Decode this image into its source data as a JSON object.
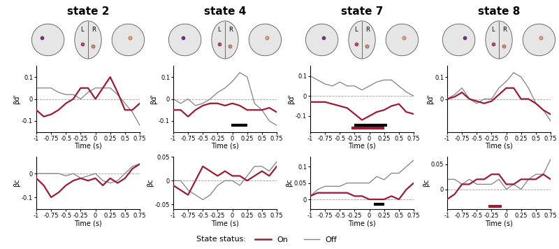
{
  "legend_title": "State status:",
  "legend": "lower center",
  "brain_labels": [
    "L",
    "R"
  ],
  "chart_data": [
    {
      "type": "line",
      "title": "state 2",
      "xlabel": "Time (s)",
      "ylabel": "βd'",
      "x": [
        -1,
        -0.875,
        -0.75,
        -0.625,
        -0.5,
        -0.375,
        -0.25,
        -0.125,
        0,
        0.125,
        0.25,
        0.375,
        0.5,
        0.625,
        0.75
      ],
      "xlim": [
        -1,
        0.75
      ],
      "xticks": [
        -1,
        -0.75,
        -0.5,
        -0.25,
        0,
        0.25,
        0.5,
        0.75
      ],
      "ylim": [
        -0.15,
        0.15
      ],
      "yticks": [
        -0.1,
        0,
        0.1
      ],
      "hline": 0,
      "series": [
        {
          "name": "On",
          "color": "#9e1b32",
          "values": [
            -0.05,
            -0.08,
            -0.07,
            -0.05,
            -0.02,
            0.0,
            0.05,
            0.05,
            0.0,
            0.05,
            0.1,
            0.03,
            -0.05,
            -0.05,
            -0.02
          ],
          "significant": []
        },
        {
          "name": "Off",
          "color": "#808080",
          "values": [
            0.05,
            0.05,
            0.05,
            0.03,
            0.02,
            0.02,
            0.0,
            0.03,
            0.05,
            0.05,
            0.05,
            0.02,
            -0.02,
            -0.06,
            -0.12
          ],
          "significant": []
        }
      ]
    },
    {
      "type": "line",
      "title": "state 4",
      "xlabel": "Time (s)",
      "ylabel": "βd'",
      "x": [
        -1,
        -0.875,
        -0.75,
        -0.625,
        -0.5,
        -0.375,
        -0.25,
        -0.125,
        0,
        0.125,
        0.25,
        0.375,
        0.5,
        0.625,
        0.75
      ],
      "xlim": [
        -1,
        0.75
      ],
      "xticks": [
        -1,
        -0.75,
        -0.5,
        -0.25,
        0,
        0.25,
        0.5,
        0.75
      ],
      "ylim": [
        -0.15,
        0.15
      ],
      "yticks": [
        -0.1,
        0,
        0.1
      ],
      "hline": 0,
      "series": [
        {
          "name": "On",
          "color": "#9e1b32",
          "values": [
            -0.05,
            -0.05,
            -0.08,
            -0.05,
            -0.03,
            -0.02,
            -0.02,
            -0.03,
            -0.02,
            -0.03,
            -0.05,
            -0.05,
            -0.05,
            -0.04,
            -0.06
          ],
          "significant": []
        },
        {
          "name": "Off",
          "color": "#808080",
          "values": [
            0.0,
            -0.02,
            0.0,
            -0.03,
            -0.02,
            0.0,
            0.03,
            0.05,
            0.08,
            0.12,
            0.1,
            -0.02,
            -0.05,
            -0.1,
            -0.12
          ],
          "significant": [
            [
              -0.02,
              0.25
            ]
          ]
        }
      ]
    },
    {
      "type": "line",
      "title": "state 7",
      "xlabel": "Time (s)",
      "ylabel": "βd'",
      "x": [
        -1,
        -0.875,
        -0.75,
        -0.625,
        -0.5,
        -0.375,
        -0.25,
        -0.125,
        0,
        0.125,
        0.25,
        0.375,
        0.5,
        0.625,
        0.75
      ],
      "xlim": [
        -1,
        0.75
      ],
      "xticks": [
        -1,
        -0.75,
        -0.5,
        -0.25,
        0,
        0.25,
        0.5,
        0.75
      ],
      "ylim": [
        -0.18,
        0.15
      ],
      "yticks": [
        -0.1,
        0,
        0.1
      ],
      "hline": 0,
      "series": [
        {
          "name": "On",
          "color": "#9e1b32",
          "values": [
            -0.03,
            -0.03,
            -0.03,
            -0.04,
            -0.05,
            -0.06,
            -0.09,
            -0.12,
            -0.1,
            -0.08,
            -0.07,
            -0.05,
            -0.04,
            -0.08,
            -0.09
          ],
          "significant": [
            [
              -0.3,
              0.25
            ]
          ]
        },
        {
          "name": "Off",
          "color": "#808080",
          "values": [
            0.1,
            0.08,
            0.06,
            0.05,
            0.07,
            0.05,
            0.05,
            0.03,
            0.05,
            0.07,
            0.08,
            0.08,
            0.05,
            0.02,
            0.0
          ],
          "significant": [
            [
              -0.25,
              0.3
            ]
          ]
        }
      ]
    },
    {
      "type": "line",
      "title": "state 8",
      "xlabel": "Time (s)",
      "ylabel": "βd'",
      "x": [
        -1,
        -0.875,
        -0.75,
        -0.625,
        -0.5,
        -0.375,
        -0.25,
        -0.125,
        0,
        0.125,
        0.25,
        0.375,
        0.5,
        0.625,
        0.75
      ],
      "xlim": [
        -1,
        0.75
      ],
      "xticks": [
        -1,
        -0.75,
        -0.5,
        -0.25,
        0,
        0.25,
        0.5,
        0.75
      ],
      "ylim": [
        -0.15,
        0.15
      ],
      "yticks": [
        0,
        0.1
      ],
      "hline": 0,
      "series": [
        {
          "name": "On",
          "color": "#9e1b32",
          "values": [
            0.0,
            0.01,
            0.03,
            0.0,
            -0.01,
            -0.02,
            -0.01,
            0.02,
            0.05,
            0.05,
            0.0,
            0.0,
            -0.02,
            -0.05,
            -0.07
          ],
          "significant": []
        },
        {
          "name": "Off",
          "color": "#808080",
          "values": [
            0.0,
            0.02,
            0.05,
            0.0,
            -0.02,
            0.0,
            0.0,
            0.05,
            0.08,
            0.12,
            0.1,
            0.05,
            -0.02,
            -0.05,
            -0.1
          ],
          "significant": []
        }
      ]
    },
    {
      "type": "line",
      "xlabel": "Time (s)",
      "ylabel": "βc",
      "x": [
        -1,
        -0.875,
        -0.75,
        -0.625,
        -0.5,
        -0.375,
        -0.25,
        -0.125,
        0,
        0.125,
        0.25,
        0.375,
        0.5,
        0.625,
        0.75
      ],
      "xlim": [
        -1,
        0.75
      ],
      "xticks": [
        -1,
        -0.75,
        -0.5,
        -0.25,
        0,
        0.25,
        0.5,
        0.75
      ],
      "ylim": [
        -0.15,
        0.07
      ],
      "yticks": [
        -0.1,
        0
      ],
      "hline": 0,
      "series": [
        {
          "name": "On",
          "color": "#9e1b32",
          "values": [
            -0.02,
            -0.05,
            -0.1,
            -0.08,
            -0.05,
            -0.03,
            -0.02,
            -0.03,
            -0.02,
            -0.05,
            -0.02,
            -0.04,
            -0.02,
            0.02,
            0.04
          ],
          "significant": []
        },
        {
          "name": "Off",
          "color": "#808080",
          "values": [
            0.0,
            0.0,
            0.0,
            0.0,
            -0.01,
            0.0,
            -0.02,
            -0.01,
            0.0,
            -0.03,
            -0.04,
            -0.03,
            0.0,
            0.03,
            0.04
          ],
          "significant": []
        }
      ]
    },
    {
      "type": "line",
      "xlabel": "Time (s)",
      "ylabel": "βc",
      "x": [
        -1,
        -0.875,
        -0.75,
        -0.625,
        -0.5,
        -0.375,
        -0.25,
        -0.125,
        0,
        0.125,
        0.25,
        0.375,
        0.5,
        0.625,
        0.75
      ],
      "xlim": [
        -1,
        0.75
      ],
      "xticks": [
        -1,
        -0.75,
        -0.5,
        -0.25,
        0,
        0.25,
        0.5,
        0.75
      ],
      "ylim": [
        -0.06,
        0.05
      ],
      "yticks": [
        -0.05,
        0,
        0.05
      ],
      "hline": 0,
      "series": [
        {
          "name": "On",
          "color": "#9e1b32",
          "values": [
            -0.01,
            -0.02,
            -0.03,
            0.0,
            0.03,
            0.02,
            0.01,
            0.02,
            0.01,
            0.01,
            0.0,
            0.01,
            0.02,
            0.01,
            0.03
          ],
          "significant": []
        },
        {
          "name": "Off",
          "color": "#808080",
          "values": [
            0.0,
            0.0,
            -0.02,
            -0.03,
            -0.04,
            -0.03,
            -0.01,
            0.0,
            0.0,
            -0.01,
            0.01,
            0.03,
            0.03,
            0.02,
            0.04
          ],
          "significant": []
        }
      ]
    },
    {
      "type": "line",
      "xlabel": "Time (s)",
      "ylabel": "βc",
      "x": [
        -1,
        -0.875,
        -0.75,
        -0.625,
        -0.5,
        -0.375,
        -0.25,
        -0.125,
        0,
        0.125,
        0.25,
        0.375,
        0.5,
        0.625,
        0.75
      ],
      "xlim": [
        -1,
        0.75
      ],
      "xticks": [
        -1,
        -0.75,
        -0.5,
        -0.25,
        0,
        0.25,
        0.5,
        0.75
      ],
      "ylim": [
        -0.03,
        0.13
      ],
      "yticks": [
        0,
        0.05,
        0.1
      ],
      "hline": 0,
      "series": [
        {
          "name": "On",
          "color": "#9e1b32",
          "values": [
            0.01,
            0.02,
            0.02,
            0.02,
            0.02,
            0.02,
            0.01,
            0.01,
            0.0,
            0.0,
            0.0,
            0.01,
            0.0,
            0.03,
            0.05
          ],
          "significant": []
        },
        {
          "name": "Off",
          "color": "#808080",
          "values": [
            0.01,
            0.03,
            0.04,
            0.04,
            0.04,
            0.05,
            0.05,
            0.05,
            0.05,
            0.07,
            0.06,
            0.08,
            0.08,
            0.1,
            0.12
          ],
          "significant": [
            [
              0.08,
              0.25
            ]
          ]
        }
      ]
    },
    {
      "type": "line",
      "xlabel": "Time (s)",
      "ylabel": "βc",
      "x": [
        -1,
        -0.875,
        -0.75,
        -0.625,
        -0.5,
        -0.375,
        -0.25,
        -0.125,
        0,
        0.125,
        0.25,
        0.375,
        0.5,
        0.625,
        0.75
      ],
      "xlim": [
        -1,
        0.75
      ],
      "xticks": [
        -1,
        -0.75,
        -0.5,
        -0.25,
        0,
        0.25,
        0.5,
        0.75
      ],
      "ylim": [
        -0.04,
        0.065
      ],
      "yticks": [
        0,
        0.05
      ],
      "hline": 0,
      "series": [
        {
          "name": "On",
          "color": "#9e1b32",
          "values": [
            -0.02,
            -0.01,
            0.01,
            0.01,
            0.02,
            0.02,
            0.03,
            0.03,
            0.01,
            0.01,
            0.02,
            0.02,
            0.02,
            0.03,
            0.02
          ],
          "significant": [
            [
              -0.3,
              -0.08
            ]
          ]
        },
        {
          "name": "Off",
          "color": "#808080",
          "values": [
            0.02,
            0.02,
            0.01,
            0.02,
            0.01,
            0.01,
            0.01,
            0.02,
            0.0,
            0.01,
            0.0,
            0.02,
            0.03,
            0.03,
            0.06
          ],
          "significant": []
        }
      ]
    }
  ]
}
